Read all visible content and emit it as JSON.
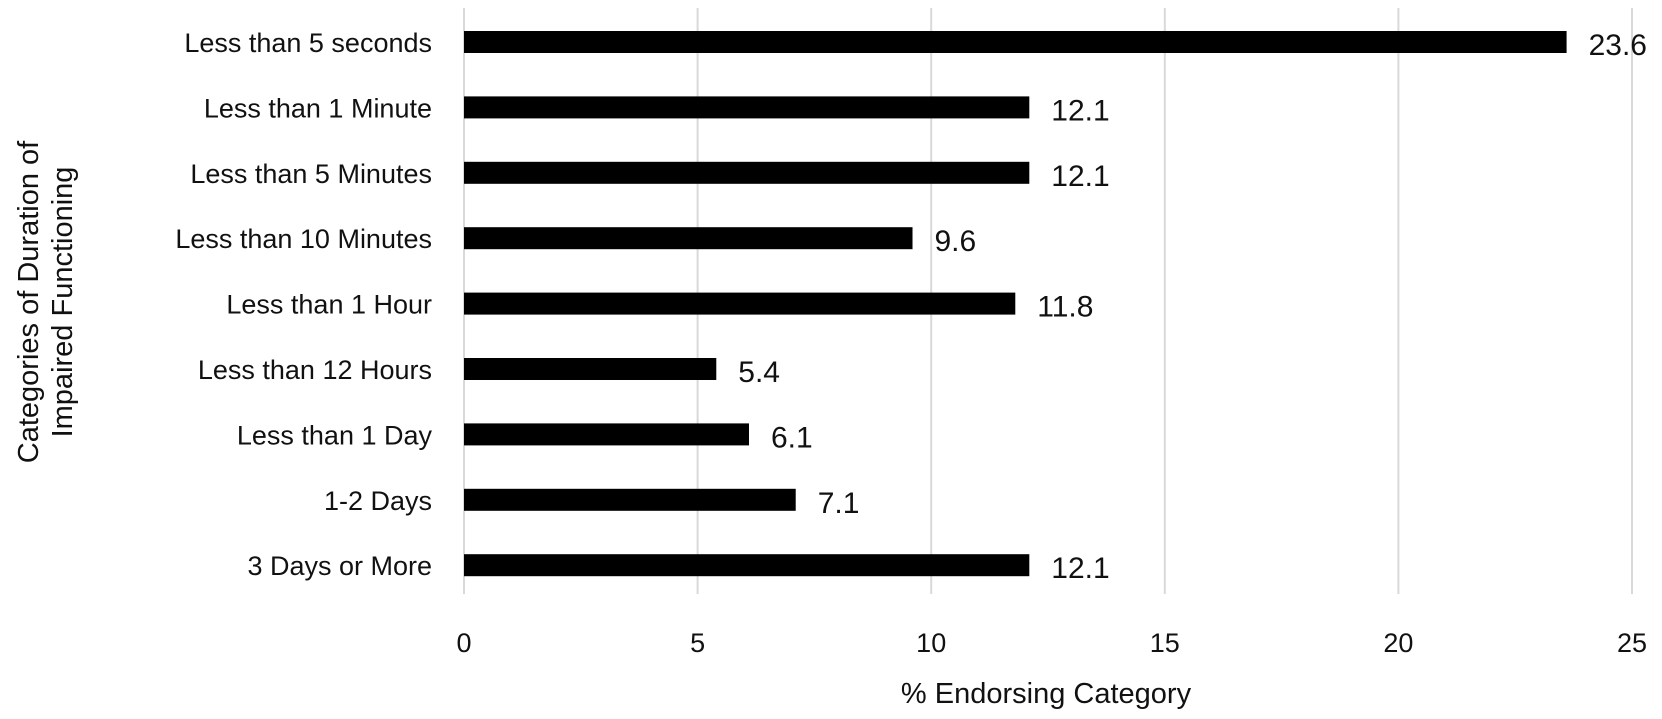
{
  "chart_data": {
    "type": "bar",
    "orientation": "horizontal",
    "categories": [
      "Less than 5 seconds",
      "Less than 1 Minute",
      "Less than 5 Minutes",
      "Less than 10 Minutes",
      "Less than 1 Hour",
      "Less than 12 Hours",
      "Less than 1 Day",
      "1-2 Days",
      "3 Days or More"
    ],
    "values": [
      23.6,
      12.1,
      12.1,
      9.6,
      11.8,
      5.4,
      6.1,
      7.1,
      12.1
    ],
    "data_labels": [
      "23.6",
      "12.1",
      "12.1",
      "9.6",
      "11.8",
      "5.4",
      "6.1",
      "7.1",
      "12.1"
    ],
    "xlabel": "% Endorsing Category",
    "ylabel_lines": [
      "Categories of Duration of",
      "Impaired Functioning"
    ],
    "xlim": [
      0,
      25
    ],
    "xticks": [
      0,
      5,
      10,
      15,
      20,
      25
    ],
    "xtick_labels": [
      "0",
      "5",
      "10",
      "15",
      "20",
      "25"
    ],
    "grid": "vertical",
    "legend": "none",
    "bar_color": "#000000",
    "grid_color": "#d9d9d9"
  }
}
